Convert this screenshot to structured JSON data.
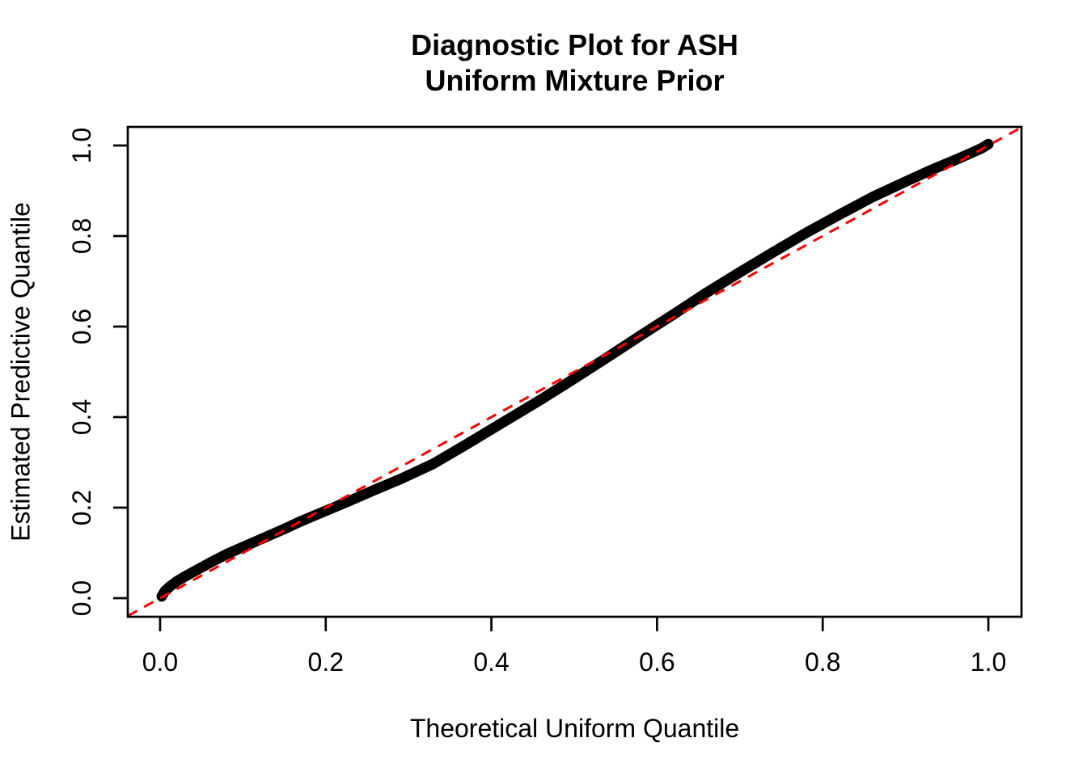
{
  "figure": {
    "background_color": "#FFFFFF"
  },
  "chart_data": {
    "type": "scatter",
    "title": "Diagnostic Plot for ASH",
    "subtitle": "Uniform Mixture Prior",
    "title_lines": [
      "Diagnostic Plot for ASH",
      "Uniform Mixture Prior"
    ],
    "xlabel": "Theoretical Uniform Quantile",
    "ylabel": "Estimated Predictive Quantile",
    "xlim": [
      -0.039,
      1.04
    ],
    "ylim": [
      -0.041,
      1.041
    ],
    "x_ticks": [
      0.0,
      0.2,
      0.4,
      0.6,
      0.8,
      1.0
    ],
    "x_tick_labels": [
      "0.0",
      "0.2",
      "0.4",
      "0.6",
      "0.8",
      "1.0"
    ],
    "y_ticks": [
      0.0,
      0.2,
      0.4,
      0.6,
      0.8,
      1.0
    ],
    "y_tick_labels": [
      "0.0",
      "0.2",
      "0.4",
      "0.6",
      "0.8",
      "1.0"
    ],
    "grid": false,
    "legend": false,
    "box": true,
    "series": [
      {
        "name": "estimated-predictive-quantile-curve",
        "type": "points",
        "color": "#000000",
        "x": [
          0.002,
          0.006,
          0.012,
          0.02,
          0.03,
          0.04,
          0.06,
          0.08,
          0.1,
          0.12,
          0.15,
          0.17,
          0.2,
          0.23,
          0.26,
          0.29,
          0.33,
          0.37,
          0.41,
          0.46,
          0.5,
          0.54,
          0.58,
          0.62,
          0.66,
          0.7,
          0.74,
          0.78,
          0.82,
          0.86,
          0.9,
          0.93,
          0.96,
          0.98,
          0.992,
          1.0
        ],
        "y": [
          0.004,
          0.016,
          0.026,
          0.037,
          0.048,
          0.058,
          0.078,
          0.097,
          0.113,
          0.129,
          0.153,
          0.17,
          0.193,
          0.216,
          0.24,
          0.263,
          0.297,
          0.34,
          0.384,
          0.439,
          0.485,
          0.532,
          0.58,
          0.627,
          0.675,
          0.72,
          0.764,
          0.807,
          0.847,
          0.886,
          0.92,
          0.945,
          0.968,
          0.984,
          0.994,
          1.003
        ]
      },
      {
        "name": "reference-line-y-equals-x",
        "type": "dashed-line",
        "color": "#FF0000",
        "equation": "y = x",
        "x": [
          -0.039,
          1.04
        ],
        "y": [
          -0.039,
          1.04
        ]
      }
    ],
    "colors": {
      "points": "#000000",
      "reference_line": "#FF0000",
      "axis": "#000000",
      "background": "#FFFFFF"
    }
  }
}
